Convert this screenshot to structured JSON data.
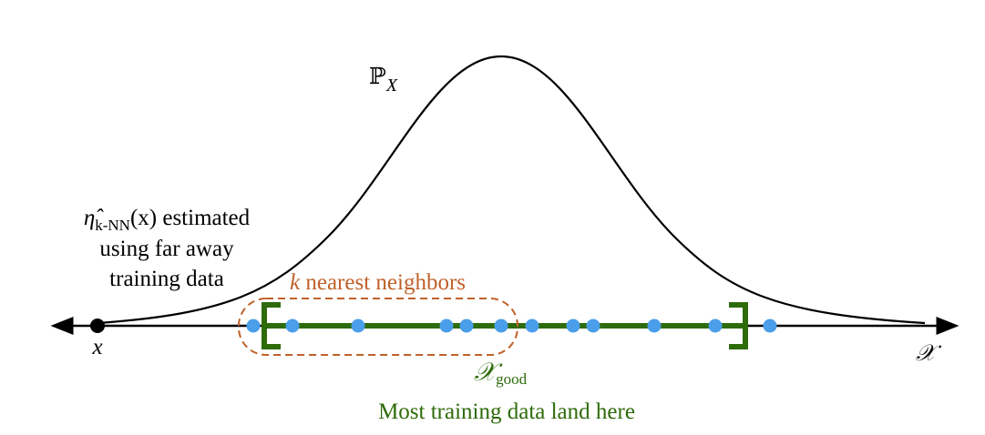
{
  "density": {
    "symbol": "ℙ",
    "subscript": "X"
  },
  "estimate_note": {
    "symbol": "η̂",
    "subscript": "k-NN",
    "argument": "(x) estimated",
    "line2": "using far away",
    "line3": "training data"
  },
  "neighbors": {
    "k": "k",
    "text": " nearest neighbors"
  },
  "query_point": "x",
  "space": "𝒳",
  "good_region": {
    "symbol": "𝒳",
    "subscript": "good"
  },
  "caption": "Most training data land here"
}
